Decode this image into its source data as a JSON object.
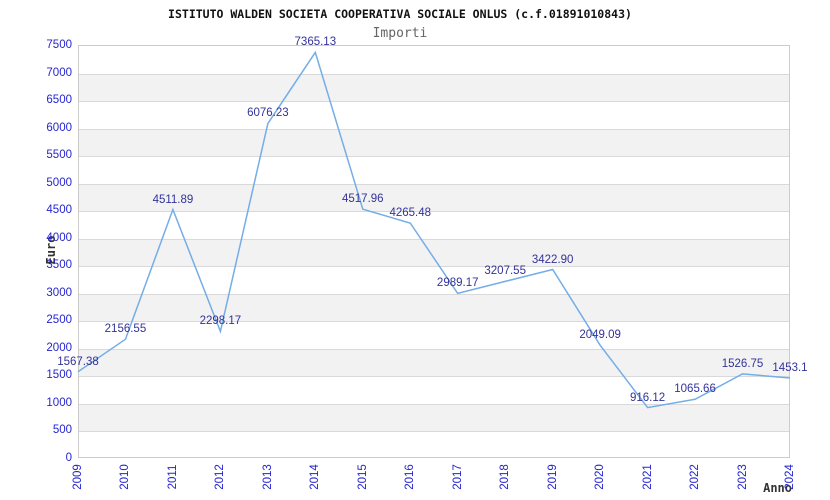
{
  "header": {
    "title": "ISTITUTO WALDEN SOCIETA COOPERATIVA SOCIALE ONLUS (c.f.01891010843)",
    "subtitle": "Importi"
  },
  "chart_data": {
    "type": "line",
    "title": "Importi",
    "xlabel": "Anno",
    "ylabel": "Euro",
    "categories": [
      "2009",
      "2010",
      "2011",
      "2012",
      "2013",
      "2014",
      "2015",
      "2016",
      "2017",
      "2018",
      "2019",
      "2020",
      "2021",
      "2022",
      "2023",
      "2024"
    ],
    "values": [
      1567.38,
      2156.55,
      4511.89,
      2298.17,
      6076.23,
      7365.13,
      4517.96,
      4265.48,
      2989.17,
      3207.55,
      3422.9,
      2049.09,
      916.12,
      1065.66,
      1526.75,
      1453.1
    ],
    "point_labels": [
      "1567.38",
      "2156.55",
      "4511.89",
      "2298.17",
      "6076.23",
      "7365.13",
      "4517.96",
      "4265.48",
      "2989.17",
      "3207.55",
      "3422.90",
      "2049.09",
      "916.12",
      "1065.66",
      "1526.75",
      "1453.1"
    ],
    "ylim": [
      0,
      7500
    ],
    "ytick_step": 500,
    "grid": true,
    "banding": "alternating-horizontal-bands",
    "legend": "none"
  },
  "colors": {
    "line": "#74ade8",
    "band": "#f2f2f2",
    "grid": "#d9d9d9",
    "plot_border": "#cccccc",
    "tick_label": "#2525d1",
    "point_label": "#333399",
    "title": "#111111",
    "subtitle": "#666666",
    "axis_title": "#333333"
  }
}
